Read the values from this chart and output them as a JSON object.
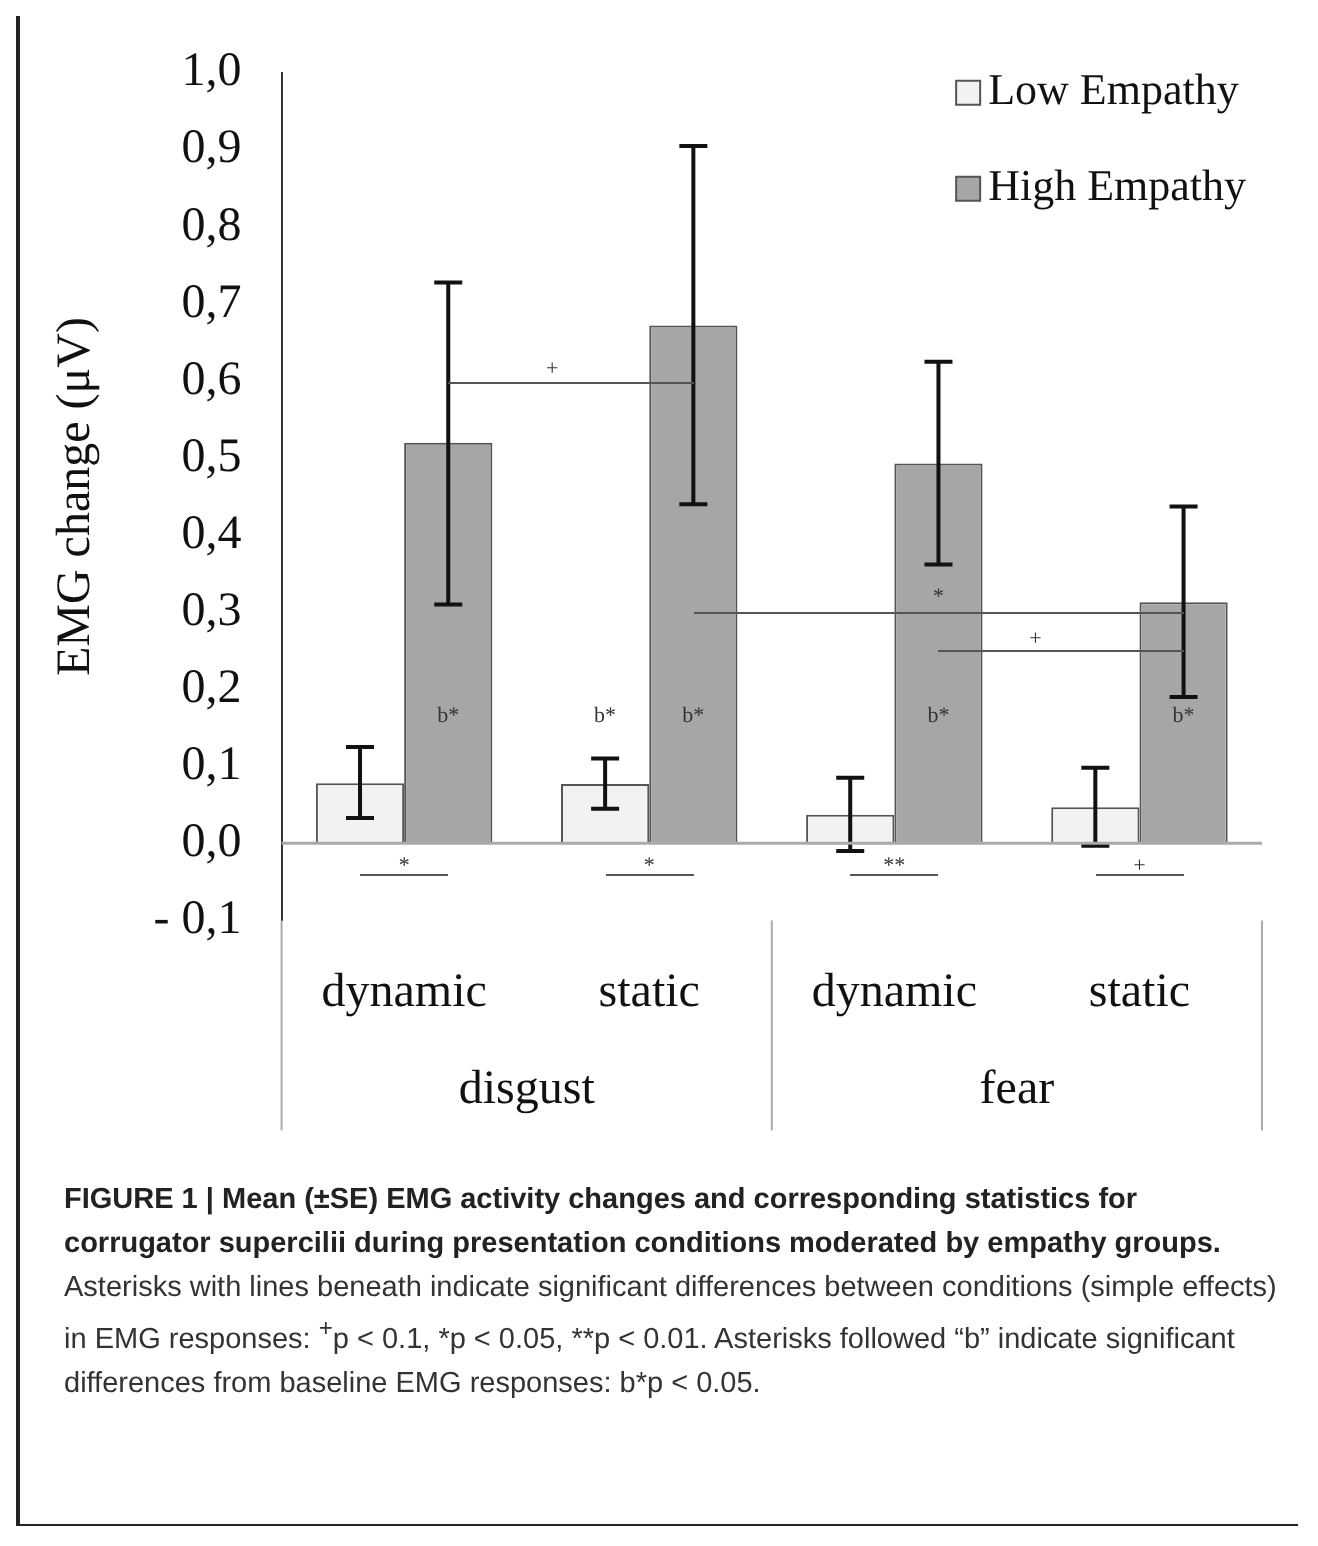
{
  "chart_data": {
    "type": "bar",
    "title": "FIGURE 1 | Mean (±SE) EMG activity changes and corresponding statistics for corrugator supercilii during presentation conditions moderated by empathy groups.",
    "ylabel": "EMG change (μV)",
    "categories": [
      "dynamic",
      "static",
      "dynamic",
      "static"
    ],
    "series": [
      {
        "name": "Low Empathy",
        "color": "#f2f2f2",
        "values": [
          0.078,
          0.077,
          0.037,
          0.047
        ],
        "errors": [
          [
            0.033,
            0.125
          ],
          [
            0.045,
            0.11
          ],
          [
            -0.01,
            0.085
          ],
          [
            -0.003,
            0.098
          ]
        ]
      },
      {
        "name": "High Empathy",
        "color": "#a6a6a6",
        "values": [
          0.52,
          0.672,
          0.493,
          0.313
        ],
        "errors": [
          [
            0.31,
            0.728
          ],
          [
            0.44,
            0.905
          ],
          [
            0.362,
            0.625
          ],
          [
            0.19,
            0.437
          ]
        ]
      }
    ],
    "ylim": [
      -0.1,
      1.0
    ],
    "yticks": [
      {
        "value": -0.1,
        "label": "- 0,1"
      },
      {
        "value": 0,
        "label": "0,0"
      },
      {
        "value": 0.1,
        "label": "0,1"
      },
      {
        "value": 0.2,
        "label": "0,2"
      },
      {
        "value": 0.3,
        "label": "0,3"
      },
      {
        "value": 0.4,
        "label": "0,4"
      },
      {
        "value": 0.5,
        "label": "0,5"
      },
      {
        "value": 0.6,
        "label": "0,6"
      },
      {
        "value": 0.7,
        "label": "0,7"
      },
      {
        "value": 0.8,
        "label": "0,8"
      },
      {
        "value": 0.9,
        "label": "0,9"
      },
      {
        "value": 1.0,
        "label": "1,0"
      }
    ],
    "grid": false,
    "legend": "top right",
    "annotations": [
      "b*",
      "*",
      "+",
      "b*",
      "b*",
      "*",
      "*",
      "b*",
      "**",
      "+",
      "b*",
      "+",
      "disgust",
      "fear",
      "Asterisks with lines beneath indicate significant differences between conditions (simple effects) in EMG responses: $^{+}$p < 0.1, *p < 0.05, **p < 0.01. Asterisks followed “b” indicate significant differences from baseline EMG responses: b*p < 0.05."
    ]
  }
}
